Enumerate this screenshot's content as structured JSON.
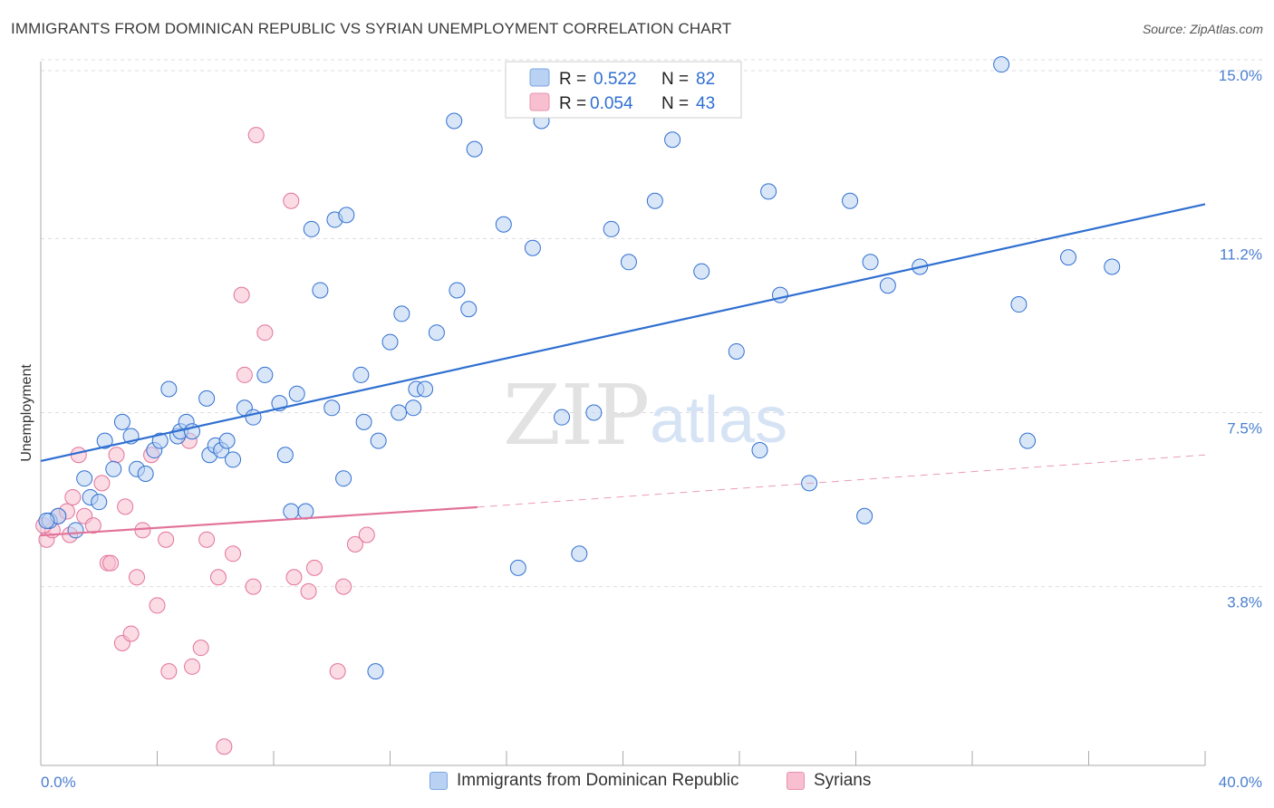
{
  "header": {
    "title": "IMMIGRANTS FROM DOMINICAN REPUBLIC VS SYRIAN UNEMPLOYMENT CORRELATION CHART",
    "source": "Source: ZipAtlas.com"
  },
  "watermark": {
    "zip": "ZIP",
    "atlas": "atlas"
  },
  "colors": {
    "blue": "#2f6fd1",
    "blue_fill": "#b9d2f3",
    "pink": "#e2729a",
    "pink_fill": "#f7bfd0",
    "grid": "#dddddd",
    "tick_text": "#4a7fd0"
  },
  "legend": {
    "items": [
      {
        "r_label": "R =",
        "r_value": "0.522",
        "n_label": "N =",
        "n_value": "82"
      },
      {
        "r_label": "R =",
        "r_value": "0.054",
        "n_label": "N =",
        "n_value": "43"
      }
    ]
  },
  "bottom_legend": {
    "items": [
      {
        "label": "Immigrants from Dominican Republic"
      },
      {
        "label": "Syrians"
      }
    ]
  },
  "chart_data": {
    "type": "scatter",
    "ylabel": "Unemployment",
    "xlabel": "",
    "x_tick_labels": [
      "0.0%",
      "40.0%"
    ],
    "y_tick_labels": [
      "3.8%",
      "7.5%",
      "11.2%",
      "15.0%"
    ],
    "y_ticks": [
      3.8,
      7.5,
      11.2,
      15.0
    ],
    "xlim": [
      0,
      40
    ],
    "ylim": [
      0,
      15.5
    ],
    "grid": true,
    "legend_position": "top-center",
    "series": [
      {
        "name": "Immigrants from Dominican Republic",
        "points": [
          [
            0.3,
            5.2
          ],
          [
            0.6,
            5.3
          ],
          [
            1.2,
            5.0
          ],
          [
            1.7,
            5.7
          ],
          [
            2.0,
            5.6
          ],
          [
            1.5,
            6.1
          ],
          [
            2.2,
            6.9
          ],
          [
            2.5,
            6.3
          ],
          [
            2.8,
            7.3
          ],
          [
            3.1,
            7.0
          ],
          [
            3.3,
            6.3
          ],
          [
            3.6,
            6.2
          ],
          [
            3.9,
            6.7
          ],
          [
            4.1,
            6.9
          ],
          [
            4.4,
            8.0
          ],
          [
            4.7,
            7.0
          ],
          [
            4.8,
            7.1
          ],
          [
            5.0,
            7.3
          ],
          [
            5.2,
            7.1
          ],
          [
            5.7,
            7.8
          ],
          [
            5.8,
            6.6
          ],
          [
            6.0,
            6.8
          ],
          [
            6.2,
            6.7
          ],
          [
            6.4,
            6.9
          ],
          [
            6.6,
            6.5
          ],
          [
            7.0,
            7.6
          ],
          [
            7.3,
            7.4
          ],
          [
            7.7,
            8.3
          ],
          [
            8.2,
            7.7
          ],
          [
            8.4,
            6.6
          ],
          [
            8.6,
            5.4
          ],
          [
            8.8,
            7.9
          ],
          [
            9.1,
            5.4
          ],
          [
            9.3,
            11.4
          ],
          [
            9.6,
            10.1
          ],
          [
            10.0,
            7.6
          ],
          [
            10.1,
            11.6
          ],
          [
            10.5,
            11.7
          ],
          [
            10.4,
            6.1
          ],
          [
            11.0,
            8.3
          ],
          [
            11.1,
            7.3
          ],
          [
            11.6,
            6.9
          ],
          [
            12.0,
            9.0
          ],
          [
            12.3,
            7.5
          ],
          [
            12.4,
            9.6
          ],
          [
            12.8,
            7.6
          ],
          [
            12.9,
            8.0
          ],
          [
            13.2,
            8.0
          ],
          [
            13.6,
            9.2
          ],
          [
            14.2,
            13.7
          ],
          [
            14.3,
            10.1
          ],
          [
            14.7,
            9.7
          ],
          [
            14.9,
            13.1
          ],
          [
            15.9,
            11.5
          ],
          [
            16.4,
            4.2
          ],
          [
            16.9,
            11.0
          ],
          [
            17.2,
            13.7
          ],
          [
            17.9,
            7.4
          ],
          [
            18.5,
            4.5
          ],
          [
            19.0,
            7.5
          ],
          [
            19.6,
            11.4
          ],
          [
            20.2,
            10.7
          ],
          [
            21.1,
            12.0
          ],
          [
            21.7,
            13.3
          ],
          [
            22.7,
            10.5
          ],
          [
            23.9,
            8.8
          ],
          [
            24.7,
            6.7
          ],
          [
            25.0,
            12.2
          ],
          [
            25.4,
            10.0
          ],
          [
            26.4,
            6.0
          ],
          [
            27.8,
            12.0
          ],
          [
            28.3,
            5.3
          ],
          [
            28.5,
            10.7
          ],
          [
            29.1,
            10.2
          ],
          [
            30.2,
            10.6
          ],
          [
            33.0,
            14.9
          ],
          [
            33.6,
            9.8
          ],
          [
            33.9,
            6.9
          ],
          [
            35.3,
            10.8
          ],
          [
            36.8,
            10.6
          ],
          [
            11.5,
            2.0
          ],
          [
            0.2,
            5.2
          ]
        ]
      },
      {
        "name": "Syrians",
        "points": [
          [
            0.2,
            4.8
          ],
          [
            0.4,
            5.0
          ],
          [
            0.6,
            5.3
          ],
          [
            0.9,
            5.4
          ],
          [
            1.1,
            5.7
          ],
          [
            1.3,
            6.6
          ],
          [
            1.5,
            5.3
          ],
          [
            1.8,
            5.1
          ],
          [
            2.1,
            6.0
          ],
          [
            2.3,
            4.3
          ],
          [
            2.4,
            4.3
          ],
          [
            2.6,
            6.6
          ],
          [
            2.8,
            2.6
          ],
          [
            2.9,
            5.5
          ],
          [
            3.1,
            2.8
          ],
          [
            3.3,
            4.0
          ],
          [
            3.5,
            5.0
          ],
          [
            3.8,
            6.6
          ],
          [
            4.0,
            3.4
          ],
          [
            4.3,
            4.8
          ],
          [
            4.4,
            2.0
          ],
          [
            5.1,
            6.9
          ],
          [
            5.2,
            2.1
          ],
          [
            5.5,
            2.5
          ],
          [
            5.7,
            4.8
          ],
          [
            6.1,
            4.0
          ],
          [
            6.3,
            0.4
          ],
          [
            6.6,
            4.5
          ],
          [
            6.9,
            10.0
          ],
          [
            7.0,
            8.3
          ],
          [
            7.3,
            3.8
          ],
          [
            7.4,
            13.4
          ],
          [
            7.7,
            9.2
          ],
          [
            8.6,
            12.0
          ],
          [
            8.7,
            4.0
          ],
          [
            9.2,
            3.7
          ],
          [
            9.4,
            4.2
          ],
          [
            10.2,
            2.0
          ],
          [
            10.4,
            3.8
          ],
          [
            10.8,
            4.7
          ],
          [
            11.2,
            4.9
          ],
          [
            0.1,
            5.1
          ],
          [
            1.0,
            4.9
          ]
        ]
      }
    ],
    "trendlines": [
      {
        "series": "Immigrants from Dominican Republic",
        "x": [
          0,
          40
        ],
        "y": [
          6.47,
          11.93
        ],
        "style": "solid"
      },
      {
        "series": "Syrians",
        "x": [
          0,
          15
        ],
        "y": [
          4.89,
          5.49
        ],
        "style": "solid"
      },
      {
        "series": "Syrians",
        "x": [
          15,
          40
        ],
        "y": [
          5.49,
          6.6
        ],
        "style": "dashed"
      }
    ]
  }
}
